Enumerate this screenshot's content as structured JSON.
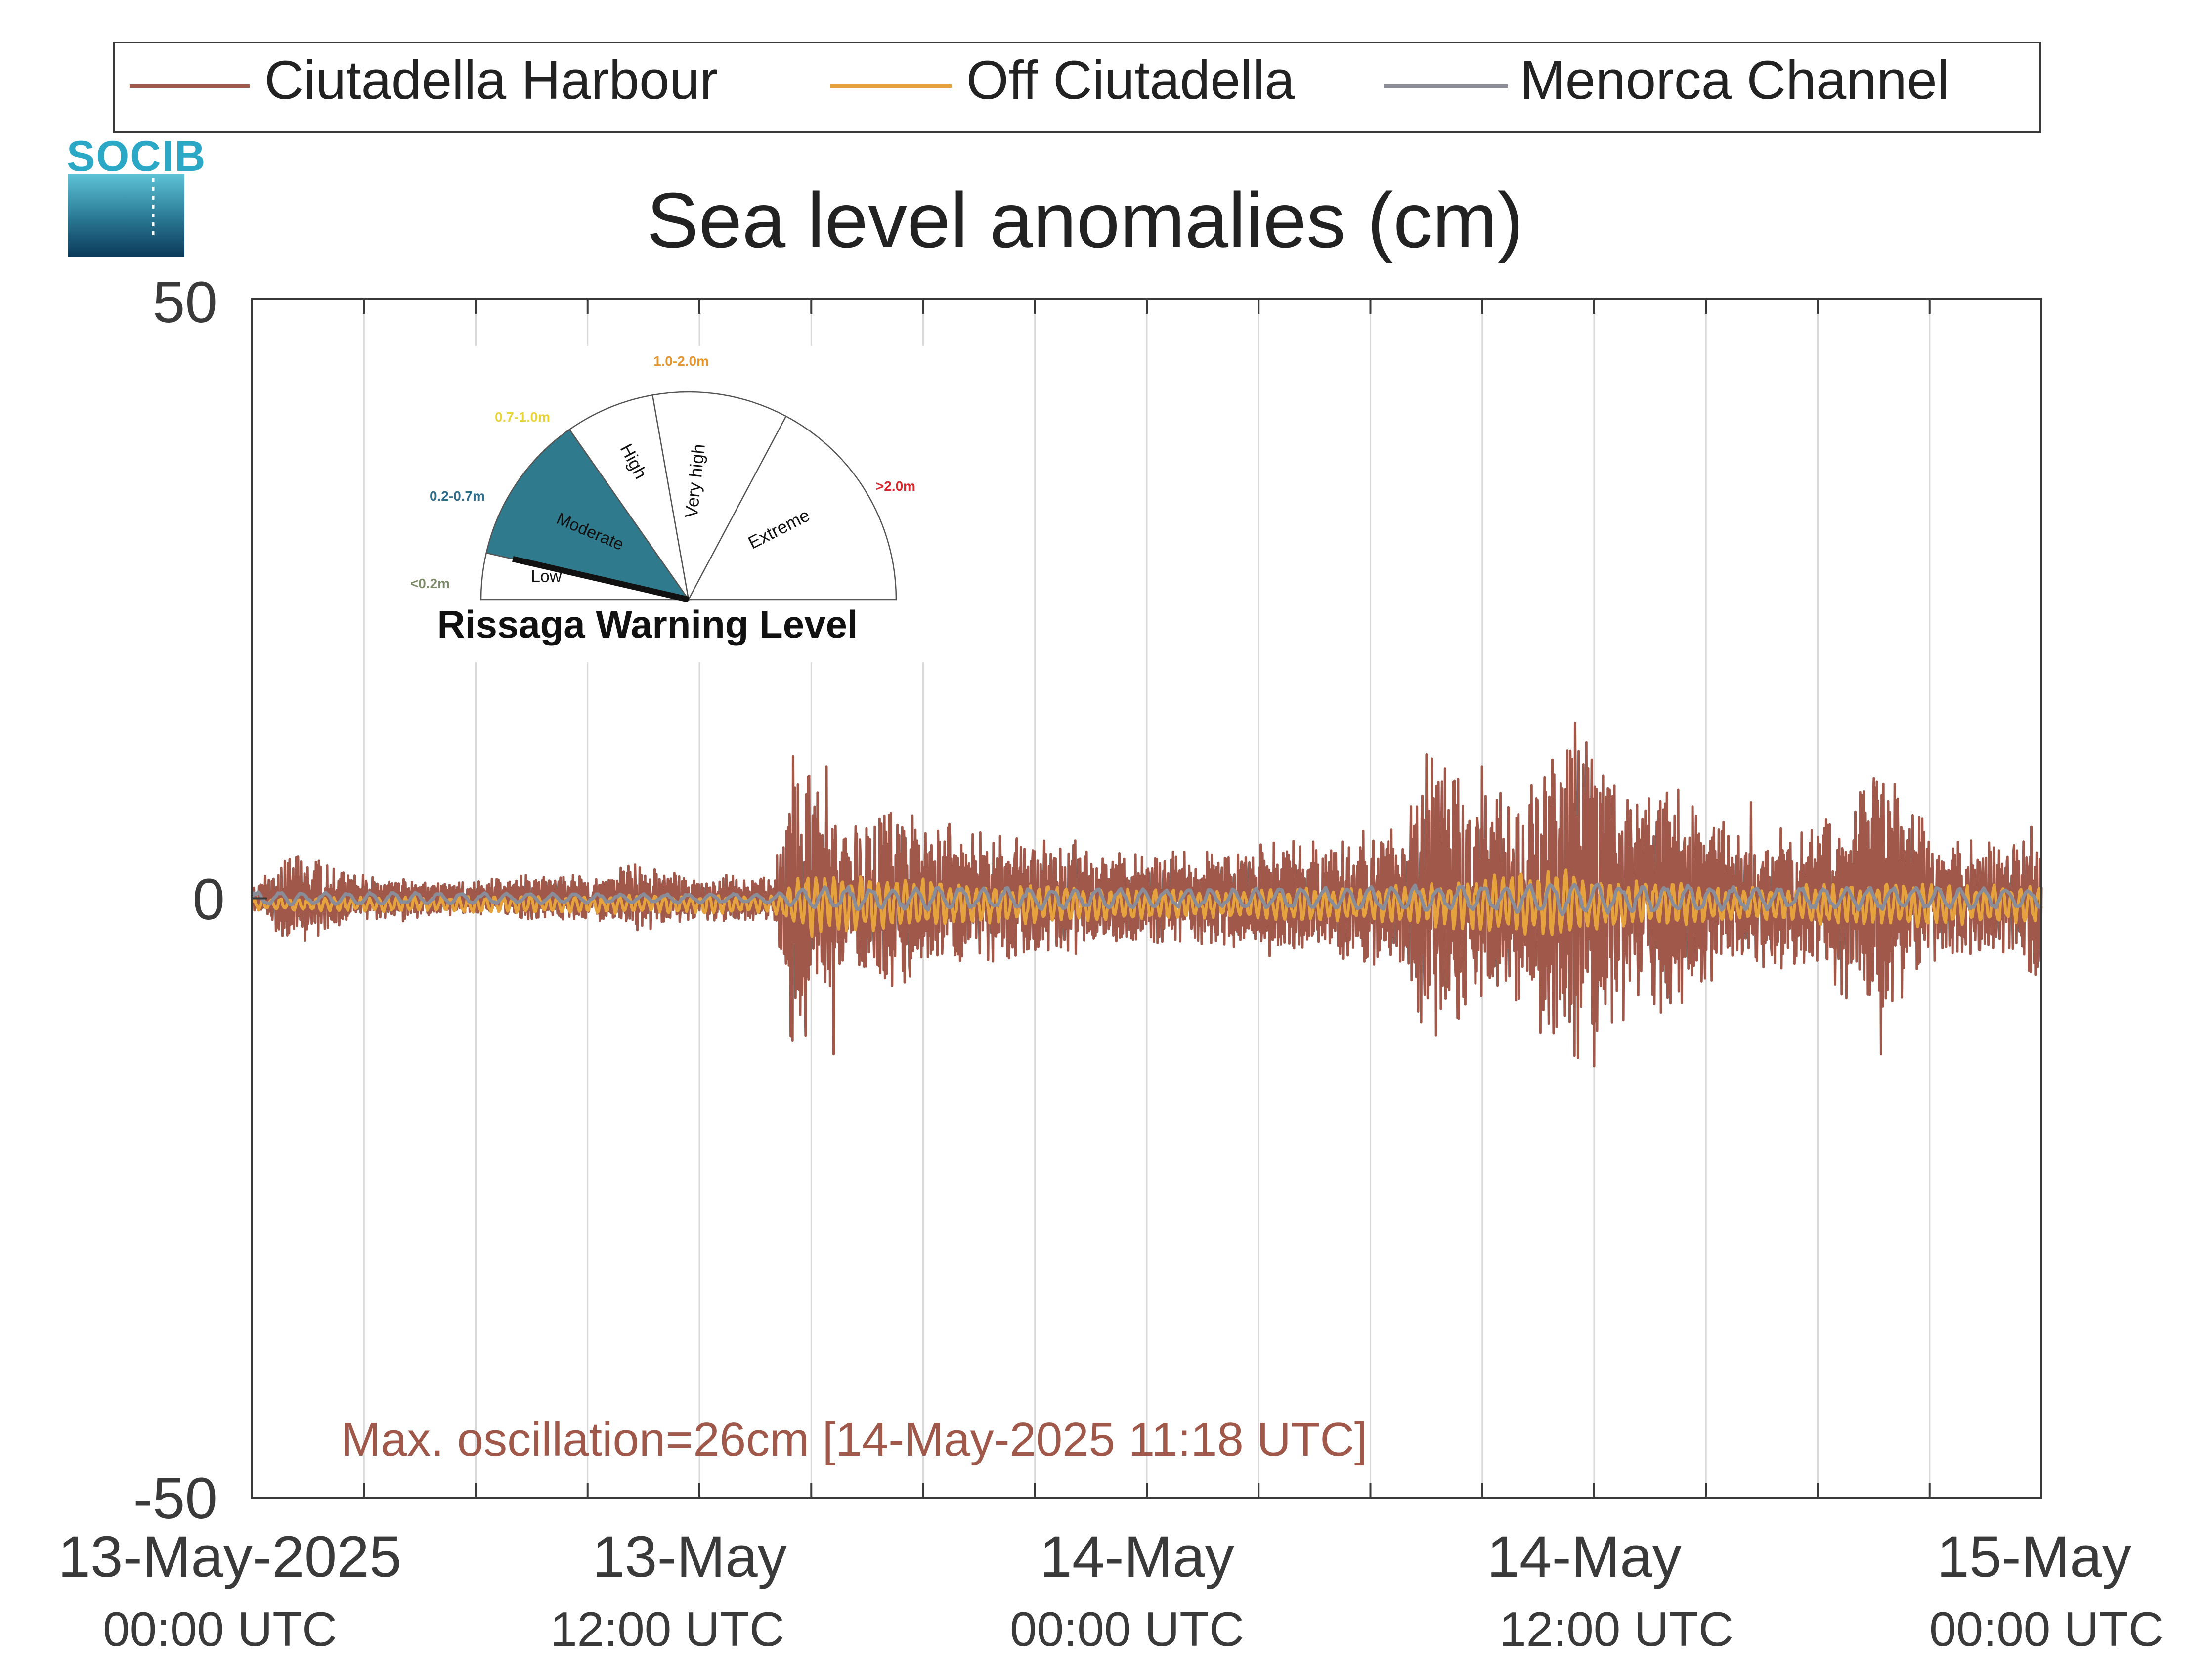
{
  "legend": {
    "entries": [
      {
        "label": "Ciutadella Harbour",
        "color": "#a0584a"
      },
      {
        "label": "Off Ciutadella",
        "color": "#e6a23c"
      },
      {
        "label": "Menorca Channel",
        "color": "#8a8d98"
      }
    ]
  },
  "logo": {
    "text": "SOCIB",
    "color": "#2aa8c6"
  },
  "chart_data": {
    "type": "line",
    "title": "Sea level anomalies (cm)",
    "xlabel": "",
    "ylabel": "",
    "ylim": [
      -50,
      50
    ],
    "yticks": [
      -50,
      0,
      50
    ],
    "ytick_labels": [
      "-50",
      "0",
      "50"
    ],
    "xlim_hours": [
      0,
      48
    ],
    "x_start": "13-May-2025 00:00 UTC",
    "x_end": "15-May-2025 00:00 UTC",
    "grid": true,
    "grid_step_hours": 3,
    "xtick_labels": [
      {
        "line1": "13-May-2025",
        "line2": "00:00 UTC",
        "hour": 0
      },
      {
        "line1": "13-May",
        "line2": "12:00 UTC",
        "hour": 12
      },
      {
        "line1": "14-May",
        "line2": "00:00 UTC",
        "hour": 24
      },
      {
        "line1": "14-May",
        "line2": "12:00 UTC",
        "hour": 36
      },
      {
        "line1": "15-May",
        "line2": "00:00 UTC",
        "hour": 48
      }
    ],
    "annotation": {
      "text": "Max. oscillation=26cm [14-May-2025 11:18 UTC]",
      "color": "#a0584a"
    },
    "series": [
      {
        "name": "Ciutadella Harbour",
        "color": "#a0584a",
        "envelope": [
          [
            0,
            1
          ],
          [
            1,
            4
          ],
          [
            2,
            3
          ],
          [
            3,
            2
          ],
          [
            4,
            2
          ],
          [
            5,
            1.5
          ],
          [
            6,
            1.5
          ],
          [
            7,
            2
          ],
          [
            8,
            2
          ],
          [
            9,
            2
          ],
          [
            10,
            3
          ],
          [
            11,
            2.5
          ],
          [
            12,
            2
          ],
          [
            13,
            2
          ],
          [
            14,
            2
          ],
          [
            14.5,
            14
          ],
          [
            15,
            12
          ],
          [
            15.5,
            8
          ],
          [
            16,
            6
          ],
          [
            17,
            8
          ],
          [
            18,
            7
          ],
          [
            19,
            6
          ],
          [
            20,
            6
          ],
          [
            21,
            5
          ],
          [
            22,
            5
          ],
          [
            23,
            4
          ],
          [
            24,
            4
          ],
          [
            25,
            4
          ],
          [
            26,
            4
          ],
          [
            27,
            5
          ],
          [
            28,
            5
          ],
          [
            29,
            5
          ],
          [
            30,
            6
          ],
          [
            31,
            7
          ],
          [
            31.5,
            14
          ],
          [
            32,
            12
          ],
          [
            33,
            10
          ],
          [
            34,
            9
          ],
          [
            34.5,
            14
          ],
          [
            35,
            13
          ],
          [
            35.5,
            16
          ],
          [
            36,
            13
          ],
          [
            37,
            10
          ],
          [
            38,
            10
          ],
          [
            39,
            7
          ],
          [
            40,
            6
          ],
          [
            42,
            6
          ],
          [
            43,
            10
          ],
          [
            43.5,
            12
          ],
          [
            44,
            10
          ],
          [
            45,
            6
          ],
          [
            46,
            5
          ],
          [
            47,
            5
          ],
          [
            48,
            7
          ]
        ],
        "extremes": [
          [
            15.4,
            11
          ],
          [
            15.6,
            -13
          ],
          [
            16.2,
            6
          ],
          [
            17.5,
            -7
          ],
          [
            31.5,
            12
          ],
          [
            33,
            11
          ],
          [
            35.8,
            13
          ],
          [
            36,
            -14
          ],
          [
            40.2,
            8
          ],
          [
            43.5,
            10
          ],
          [
            43.7,
            -13
          ]
        ]
      },
      {
        "name": "Off Ciutadella",
        "color": "#e6a23c",
        "envelope": [
          [
            0,
            0.5
          ],
          [
            5,
            0.7
          ],
          [
            10,
            0.8
          ],
          [
            14,
            0.8
          ],
          [
            15,
            3
          ],
          [
            16,
            2.5
          ],
          [
            20,
            1.8
          ],
          [
            25,
            1.2
          ],
          [
            30,
            1.5
          ],
          [
            32,
            2
          ],
          [
            35,
            3
          ],
          [
            37,
            2
          ],
          [
            40,
            1.5
          ],
          [
            44,
            2
          ],
          [
            48,
            1.5
          ]
        ]
      },
      {
        "name": "Menorca Channel",
        "color": "#8a8d98",
        "envelope": [
          [
            0,
            0.6
          ],
          [
            5,
            0.5
          ],
          [
            10,
            0.4
          ],
          [
            14,
            0.4
          ],
          [
            15,
            1
          ],
          [
            20,
            1
          ],
          [
            25,
            0.8
          ],
          [
            30,
            1
          ],
          [
            35,
            1.4
          ],
          [
            40,
            1
          ],
          [
            44,
            1
          ],
          [
            48,
            0.8
          ]
        ]
      }
    ]
  },
  "inset": {
    "title": "Rissaga Warning Level",
    "levels": [
      {
        "name": "Low",
        "range": "<0.2m",
        "range_color": "#7d8b6a"
      },
      {
        "name": "Moderate",
        "range": "0.2-0.7m",
        "range_color": "#2f6d8c"
      },
      {
        "name": "High",
        "range": "0.7-1.0m",
        "range_color": "#e8d43a"
      },
      {
        "name": "Very high",
        "range": "1.0-2.0m",
        "range_color": "#e6962e"
      },
      {
        "name": "Extreme",
        "range": ">2.0m",
        "range_color": "#d8282d"
      }
    ],
    "active_level": "Moderate",
    "active_fill": "#2f7a8c"
  }
}
